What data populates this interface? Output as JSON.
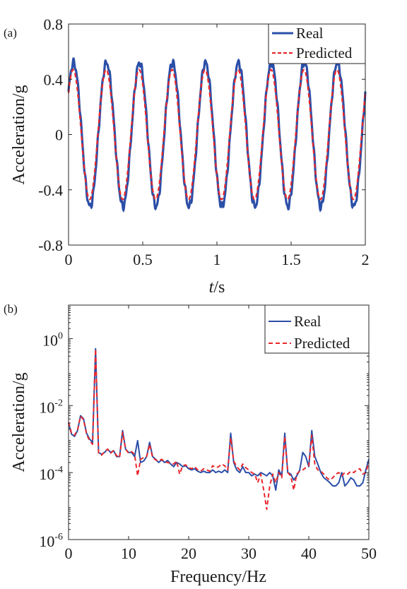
{
  "chart_data": [
    {
      "type": "line",
      "panel_label": "(a)",
      "xlabel": "t/s",
      "ylabel": "Acceleration/g",
      "xlim": [
        0,
        2
      ],
      "ylim": [
        -0.8,
        0.8
      ],
      "xticks": [
        0,
        0.5,
        1,
        1.5,
        2
      ],
      "xtick_labels": [
        "0",
        "0.5",
        "1",
        "1.5",
        "2"
      ],
      "yticks": [
        -0.8,
        -0.4,
        0,
        0.4,
        0.8
      ],
      "ytick_labels": [
        "-0.8",
        "-0.4",
        "0",
        "0.4",
        "0.8"
      ],
      "grid": false,
      "legend_position": "top-right",
      "series": [
        {
          "name": "Real",
          "color": "#2b4fa8",
          "style": "solid",
          "frequency_hz": 4.5,
          "amplitude": 0.52,
          "phase_value_at_t0": 0.3
        },
        {
          "name": "Predicted",
          "color": "#e8282c",
          "style": "dashed",
          "frequency_hz": 4.5,
          "amplitude": 0.47,
          "phase_value_at_t0": 0.3
        }
      ]
    },
    {
      "type": "line",
      "panel_label": "(b)",
      "xlabel": "Frequency/Hz",
      "ylabel": "Acceleration/g",
      "xlim": [
        0,
        50
      ],
      "ylim": [
        1e-06,
        10
      ],
      "yscale": "log",
      "xticks": [
        0,
        10,
        20,
        30,
        40,
        50
      ],
      "xtick_labels": [
        "0",
        "10",
        "20",
        "30",
        "40",
        "50"
      ],
      "yticks": [
        1e-06,
        0.0001,
        0.01,
        1
      ],
      "ytick_labels": [
        {
          "base": "10",
          "exp": "-6"
        },
        {
          "base": "10",
          "exp": "-4"
        },
        {
          "base": "10",
          "exp": "-2"
        },
        {
          "base": "10",
          "exp": "0"
        }
      ],
      "grid": false,
      "legend_position": "top-right",
      "series": [
        {
          "name": "Real",
          "color": "#2b4fa8",
          "style": "solid",
          "x": [
            0,
            0.5,
            1,
            1.5,
            2,
            2.5,
            3,
            3.5,
            4,
            4.5,
            5,
            5.5,
            6,
            6.5,
            7,
            7.5,
            8,
            8.5,
            9,
            9.5,
            10,
            10.5,
            11,
            11.5,
            12,
            12.5,
            13,
            13.5,
            14,
            14.5,
            15,
            15.5,
            16,
            16.5,
            17,
            17.5,
            18,
            18.5,
            19,
            19.5,
            20,
            20.5,
            21,
            21.5,
            22,
            22.5,
            23,
            23.5,
            24,
            24.5,
            25,
            25.5,
            26,
            26.5,
            27,
            27.5,
            28,
            28.5,
            29,
            29.5,
            30,
            30.5,
            31,
            31.5,
            32,
            32.5,
            33,
            33.5,
            34,
            34.5,
            35,
            35.5,
            36,
            36.5,
            37,
            37.5,
            38,
            38.5,
            39,
            39.5,
            40,
            40.5,
            41,
            41.5,
            42,
            42.5,
            43,
            43.5,
            44,
            44.5,
            45,
            45.5,
            46,
            46.5,
            47,
            47.5,
            48,
            48.5,
            49,
            49.5,
            50
          ],
          "y": [
            0.003,
            0.0014,
            0.0012,
            0.0018,
            0.005,
            0.004,
            0.0015,
            0.001,
            0.0008,
            0.5,
            0.0004,
            0.00035,
            0.0004,
            0.0005,
            0.0004,
            0.00045,
            0.0003,
            0.0003,
            0.0018,
            0.0005,
            0.0004,
            0.0004,
            0.0003,
            0.0009,
            0.0002,
            0.00022,
            0.0003,
            0.0008,
            0.0003,
            0.00025,
            0.0002,
            0.00024,
            0.0002,
            0.00023,
            0.00018,
            0.00015,
            0.0002,
            0.00018,
            0.00015,
            0.00016,
            0.00013,
            0.00012,
            0.00013,
            0.00011,
            0.0001,
            0.00011,
            0.0001,
            0.0001,
            0.00012,
            0.0001,
            0.00011,
            0.0001,
            0.00012,
            0.0001,
            0.0015,
            0.0002,
            0.00012,
            0.0001,
            0.00015,
            0.0001,
            0.0001,
            8e-05,
            9e-05,
            8e-05,
            0.0001,
            9e-05,
            8e-05,
            0.0001,
            8e-05,
            3e-05,
            0.00012,
            8e-05,
            0.0015,
            0.0001,
            9e-05,
            6e-05,
            8e-05,
            0.00012,
            0.0004,
            0.0003,
            0.00015,
            0.0018,
            0.0003,
            0.00018,
            0.0001,
            7e-05,
            6e-05,
            5e-05,
            4e-05,
            4e-05,
            5e-05,
            0.0001,
            4e-05,
            5e-05,
            7e-05,
            6e-05,
            4e-05,
            4e-05,
            5e-05,
            0.00012,
            0.00025
          ]
        },
        {
          "name": "Predicted",
          "color": "#e8282c",
          "style": "dashed",
          "x": [
            0,
            0.5,
            1,
            1.5,
            2,
            2.5,
            3,
            3.5,
            4,
            4.5,
            5,
            5.5,
            6,
            6.5,
            7,
            7.5,
            8,
            8.5,
            9,
            9.5,
            10,
            10.5,
            11,
            11.5,
            12,
            12.5,
            13,
            13.5,
            14,
            14.5,
            15,
            15.5,
            16,
            16.5,
            17,
            17.5,
            18,
            18.5,
            19,
            19.5,
            20,
            20.5,
            21,
            21.5,
            22,
            22.5,
            23,
            23.5,
            24,
            24.5,
            25,
            25.5,
            26,
            26.5,
            27,
            27.5,
            28,
            28.5,
            29,
            29.5,
            30,
            30.5,
            31,
            31.5,
            32,
            32.5,
            33,
            33.5,
            34,
            34.5,
            35,
            35.5,
            36,
            36.5,
            37,
            37.5,
            38,
            38.5,
            39,
            39.5,
            40,
            40.5,
            41,
            41.5,
            42,
            42.5,
            43,
            43.5,
            44,
            44.5,
            45,
            45.5,
            46,
            46.5,
            47,
            47.5,
            48,
            48.5,
            49,
            49.5,
            50
          ],
          "y": [
            0.0032,
            0.0015,
            0.0013,
            0.0019,
            0.0048,
            0.0038,
            0.0014,
            0.0009,
            0.0007,
            0.48,
            0.00038,
            0.00033,
            0.00042,
            0.0005,
            0.00038,
            0.00045,
            0.00032,
            0.00028,
            0.0016,
            0.0005,
            0.00038,
            0.00042,
            0.00035,
            8e-05,
            0.00025,
            0.00028,
            0.0003,
            0.0007,
            0.00028,
            0.00024,
            0.00022,
            0.00025,
            0.00021,
            0.0002,
            0.00019,
            0.00018,
            0.00022,
            9e-05,
            0.00016,
            0.00017,
            0.00014,
            0.00013,
            0.00015,
            0.00012,
            0.00011,
            0.00013,
            0.00012,
            0.00011,
            0.00016,
            0.00014,
            0.00015,
            0.00018,
            0.00016,
            0.00012,
            0.0011,
            0.00022,
            0.00015,
            0.00012,
            0.00018,
            0.00014,
            0.00012,
            0.0001,
            9e-05,
            5e-05,
            9e-05,
            3e-05,
            8e-06,
            4e-05,
            9e-05,
            5e-05,
            0.0001,
            7e-05,
            0.0012,
            0.0001,
            8e-05,
            3e-05,
            9e-05,
            0.00011,
            0.00012,
            0.00014,
            0.00016,
            0.0013,
            0.00018,
            0.00012,
            0.00011,
            9e-05,
            7e-05,
            6e-05,
            7e-05,
            9e-05,
            0.0001,
            8e-05,
            0.0001,
            9e-05,
            0.00011,
            0.0001,
            0.00012,
            0.00013,
            9e-05,
            0.0001,
            0.0002
          ]
        }
      ]
    }
  ]
}
